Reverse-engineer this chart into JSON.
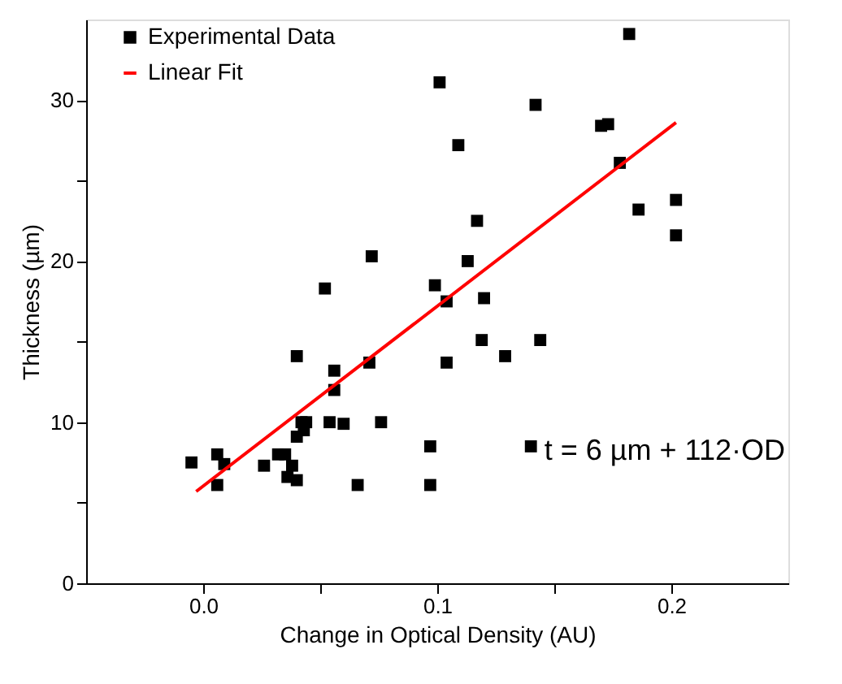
{
  "chart_data": {
    "type": "scatter",
    "xlabel": "Change in Optical Density (AU)",
    "ylabel": "Thickness (µm)",
    "xlim": [
      -0.05,
      0.25
    ],
    "ylim": [
      0,
      35
    ],
    "xticks": [
      {
        "value": 0,
        "label": "0.0"
      },
      {
        "value": 0.05,
        "label": null
      },
      {
        "value": 0.1,
        "label": "0.1"
      },
      {
        "value": 0.15,
        "label": null
      },
      {
        "value": 0.2,
        "label": "0.2"
      }
    ],
    "yticks": [
      0,
      {
        "value": 5,
        "label": null
      },
      10,
      {
        "value": 15,
        "label": null
      },
      20,
      {
        "value": 25,
        "label": null
      },
      30
    ],
    "grid": false,
    "legend": "top left",
    "annotations": [
      "t = 6 µm + 112·OD"
    ],
    "series": [
      {
        "name": "Experimental Data",
        "marker": "square",
        "color": "#000000",
        "x": [
          -0.005,
          0.006,
          0.006,
          0.009,
          0.026,
          0.032,
          0.035,
          0.038,
          0.036,
          0.04,
          0.04,
          0.04,
          0.043,
          0.044,
          0.042,
          0.054,
          0.06,
          0.056,
          0.056,
          0.052,
          0.071,
          0.072,
          0.076,
          0.066,
          0.097,
          0.097,
          0.099,
          0.101,
          0.104,
          0.104,
          0.109,
          0.113,
          0.117,
          0.12,
          0.119,
          0.129,
          0.142,
          0.14,
          0.144,
          0.17,
          0.173,
          0.178,
          0.182,
          0.186,
          0.202,
          0.202
        ],
        "values": [
          7.5,
          8.0,
          6.1,
          7.4,
          7.3,
          8.0,
          8.0,
          7.3,
          6.6,
          6.4,
          14.1,
          9.1,
          9.5,
          10.0,
          10.0,
          10.0,
          9.9,
          12.0,
          13.2,
          18.3,
          13.7,
          20.3,
          10.0,
          6.1,
          8.5,
          6.1,
          18.5,
          31.1,
          17.5,
          13.7,
          27.2,
          20.0,
          22.5,
          17.7,
          15.1,
          14.1,
          29.7,
          8.5,
          15.1,
          28.4,
          28.5,
          26.1,
          34.1,
          23.2,
          23.8,
          21.6
        ]
      },
      {
        "name": "Linear Fit",
        "type": "line",
        "color": "#ff0000",
        "line_style": "solid",
        "x": [
          -0.003,
          0.202
        ],
        "values": [
          5.7,
          28.6
        ]
      }
    ]
  }
}
